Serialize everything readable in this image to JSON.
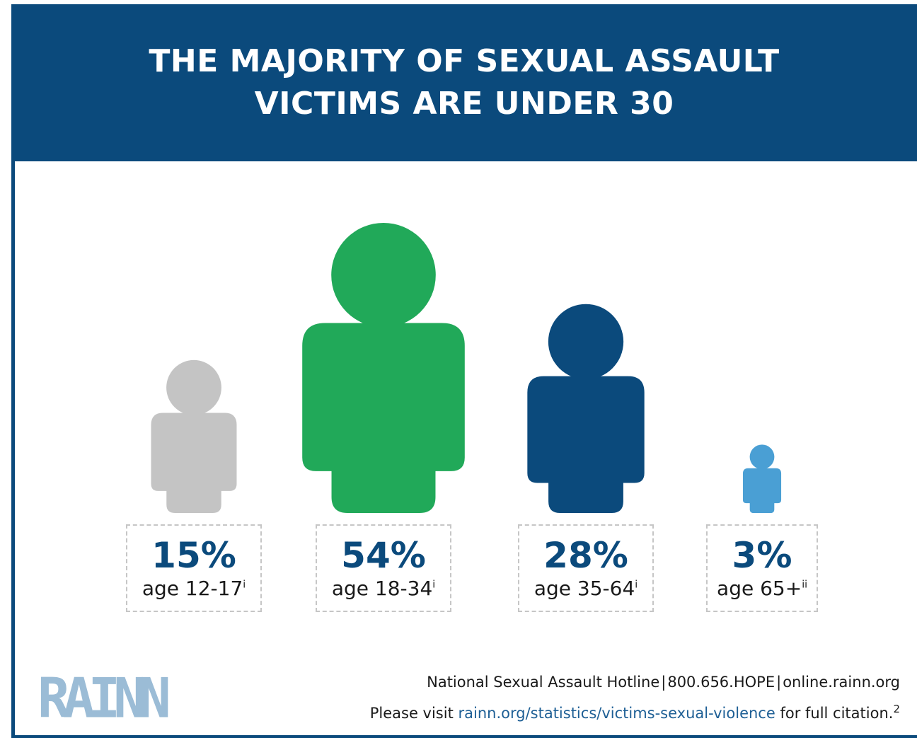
{
  "header": {
    "title_line1": "THE MAJORITY OF SEXUAL ASSAULT",
    "title_line2": "VICTIMS ARE UNDER 30"
  },
  "colors": {
    "header_bg": "#0b4a7c",
    "gray": "#c4c4c4",
    "green": "#21a959",
    "navy": "#0b4a7c",
    "light_blue": "#4a9fd4",
    "logo": "#9bbcd6",
    "link": "#1e5f95"
  },
  "chart_data": {
    "type": "pictograph",
    "title": "THE MAJORITY OF SEXUAL ASSAULT VICTIMS ARE UNDER 30",
    "categories": [
      "age 12-17",
      "age 18-34",
      "age 35-64",
      "age 65+"
    ],
    "values": [
      15,
      54,
      28,
      3
    ],
    "unit": "%",
    "series": [
      {
        "label": "15%",
        "age": "age 12-17",
        "footnote": "i",
        "value": 15,
        "color": "#c4c4c4"
      },
      {
        "label": "54%",
        "age": "age 18-34",
        "footnote": "i",
        "value": 54,
        "color": "#21a959"
      },
      {
        "label": "28%",
        "age": "age 35-64",
        "footnote": "i",
        "value": 28,
        "color": "#0b4a7c"
      },
      {
        "label": "3%",
        "age": "age 65+",
        "footnote": "ii",
        "value": 3,
        "color": "#4a9fd4"
      }
    ]
  },
  "footer": {
    "logo": "RAINN",
    "hotline_part1": "National Sexual Assault Hotline",
    "hotline_part2": "800.656.HOPE",
    "hotline_part3": "online.rainn.org",
    "hotline_separator": "|",
    "citation_prefix": "Please visit ",
    "citation_link": "rainn.org/statistics/victims-sexual-violence",
    "citation_suffix": " for full citation.",
    "citation_footnote": "2"
  }
}
